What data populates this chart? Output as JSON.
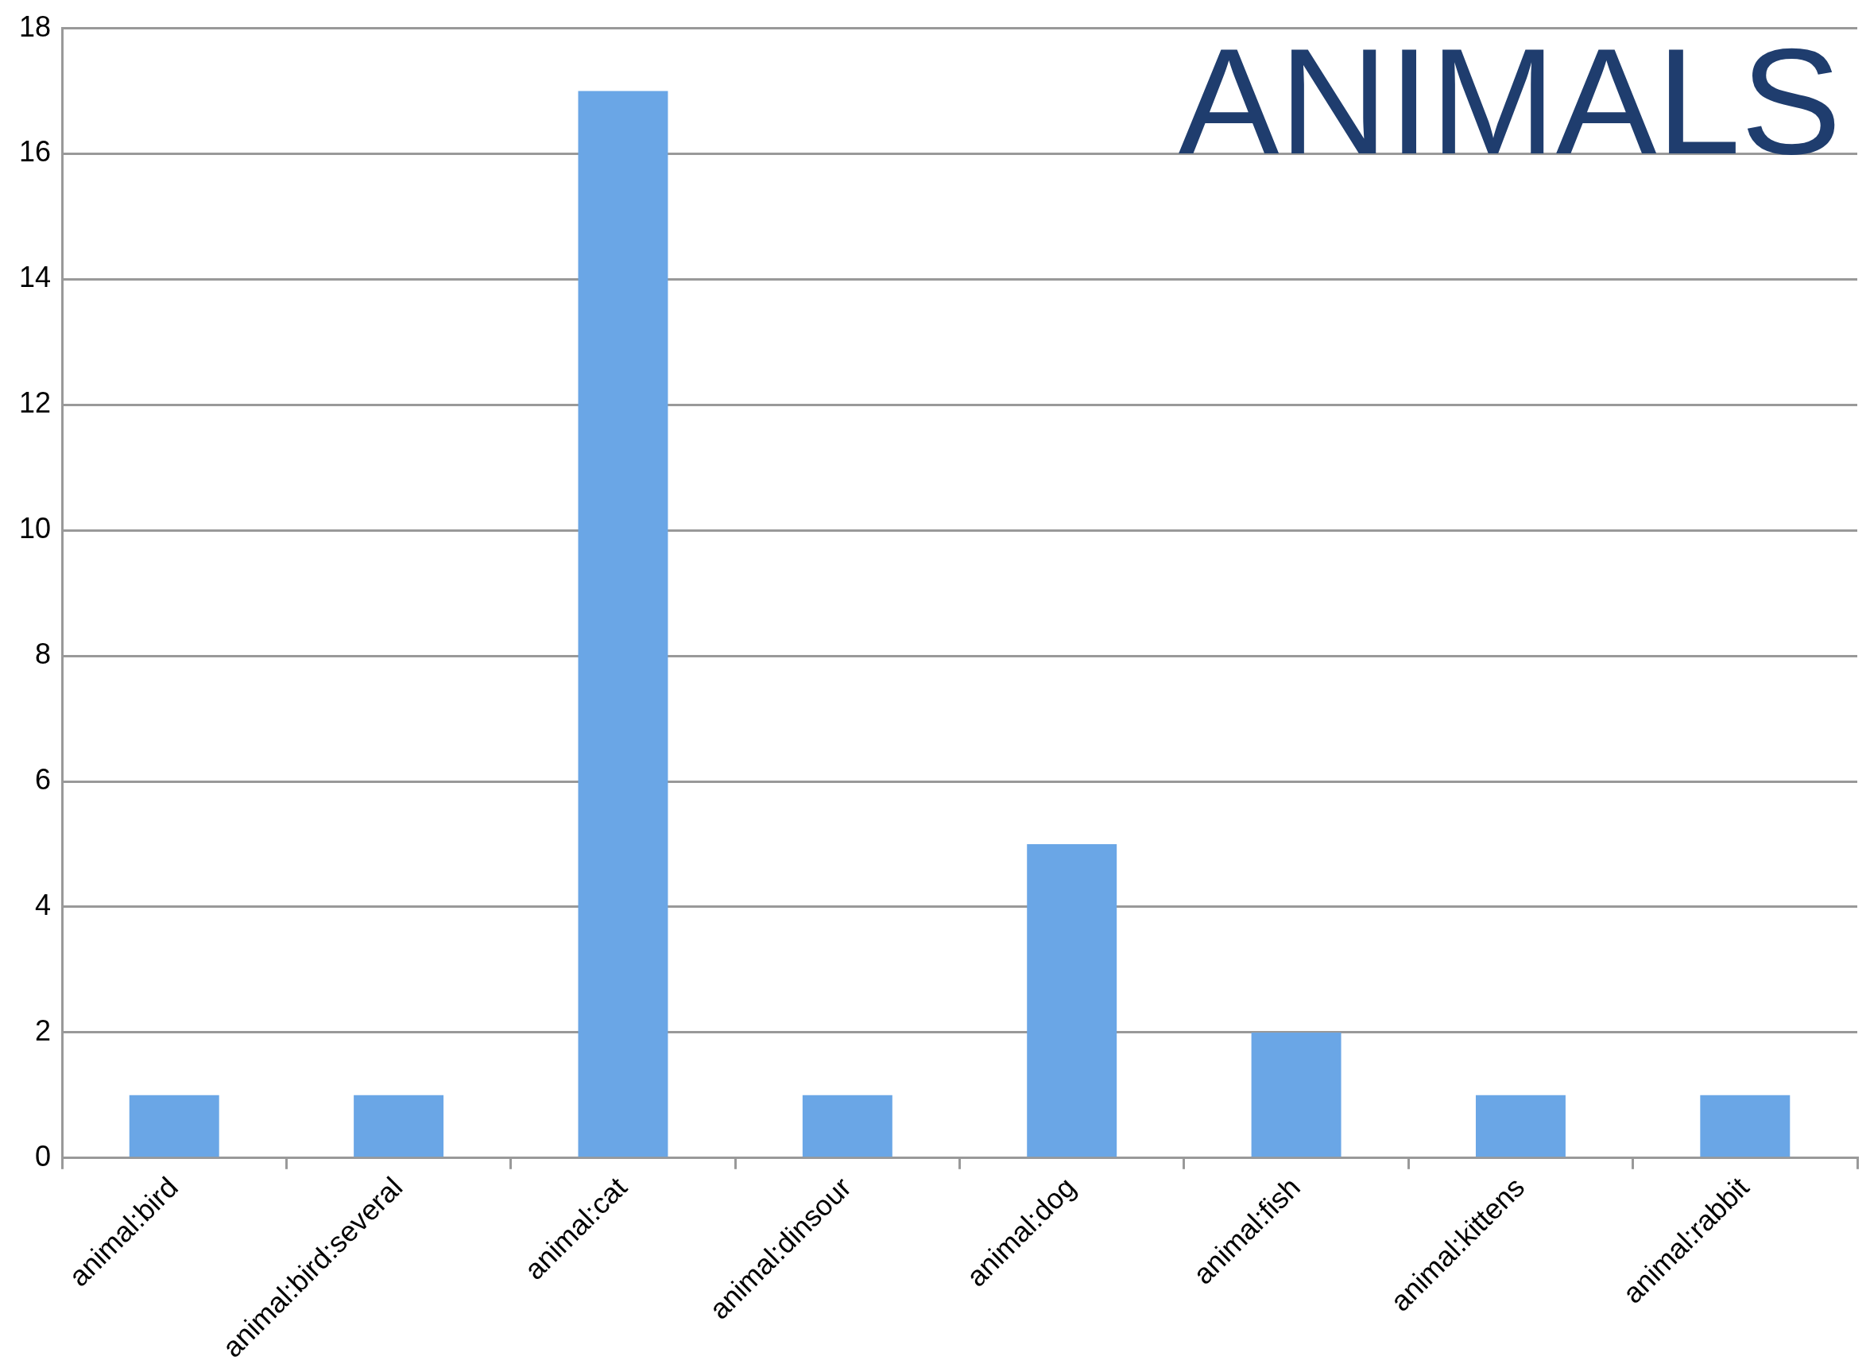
{
  "chart_data": {
    "type": "bar",
    "title": "ANIMALS",
    "categories": [
      "animal:bird",
      "animal:bird:several",
      "animal:cat",
      "animal:dinsour",
      "animal:dog",
      "animal:fish",
      "animal:kittens",
      "animal:rabbit"
    ],
    "values": [
      1,
      1,
      17,
      1,
      5,
      2,
      1,
      1
    ],
    "color": "#6aa6e6",
    "ylim": [
      0,
      18
    ],
    "yticks": [
      0,
      2,
      4,
      6,
      8,
      10,
      12,
      14,
      16,
      18
    ],
    "grid": "y",
    "legend": false
  }
}
